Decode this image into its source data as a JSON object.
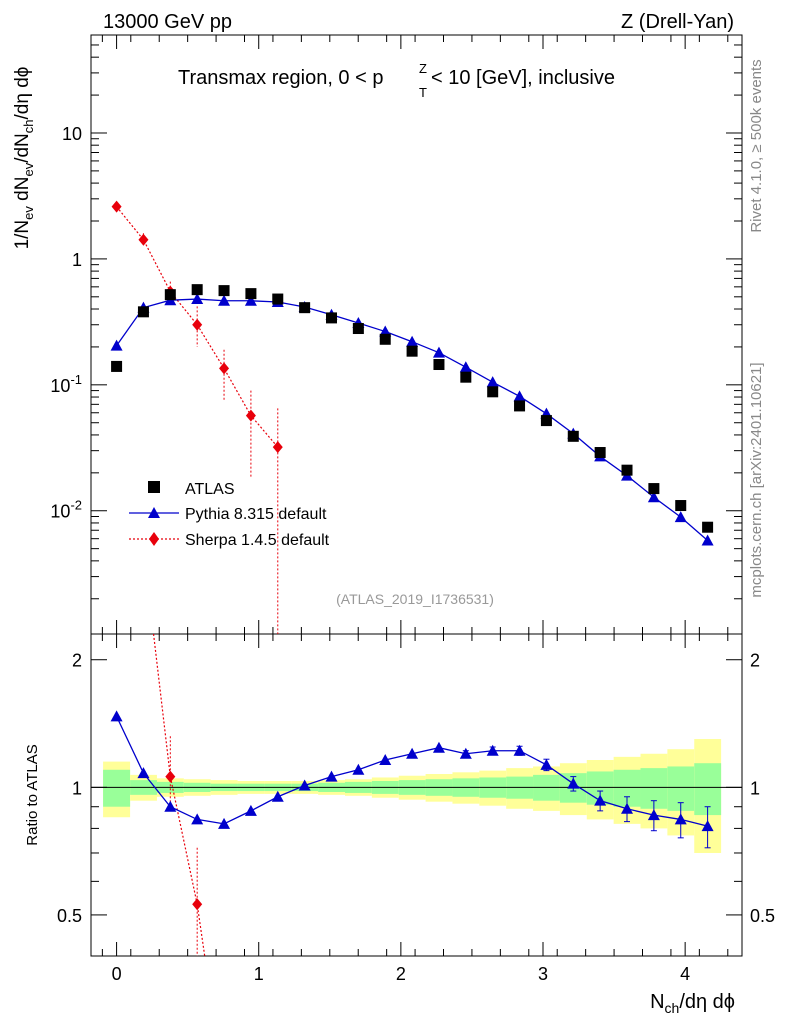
{
  "header": {
    "energy_label": "13000 GeV pp",
    "process_label": "Z (Drell-Yan)",
    "plot_title": "Transmax region, 0 < p",
    "plot_title_sup": "Z",
    "plot_title_sub": "T",
    "plot_title_tail": " < 10 [GeV], inclusive",
    "analysis_id": "(ATLAS_2019_I1736531)"
  },
  "side_labels": {
    "rivet": "Rivet 4.1.0, ≥ 500k events",
    "mcplots": "mcplots.cern.ch [arXiv:2401.10621]"
  },
  "axes": {
    "y_main_label": "1/N_ev dN_ev/dN_ch/dη dϕ",
    "y_ratio_label": "Ratio to ATLAS",
    "x_label": "N_ch/dη dϕ",
    "x_ticks": [
      "0",
      "1",
      "2",
      "3",
      "4"
    ],
    "y_main_ticks": [
      "10",
      "1",
      "10^-1",
      "10^-2"
    ],
    "y_ratio_ticks": [
      "2",
      "1",
      "0.5"
    ]
  },
  "legend": {
    "atlas": "ATLAS",
    "pythia": "Pythia 8.315 default",
    "sherpa": "Sherpa 1.4.5 default"
  },
  "colors": {
    "atlas": "#000000",
    "pythia": "#0000cc",
    "sherpa": "#e8000b",
    "band_inner": "#99ff99",
    "band_outer": "#ffff99"
  },
  "chart_data": [
    {
      "type": "scatter",
      "title": "Transmax region, 0 < pT^Z < 10 [GeV], inclusive",
      "xlabel": "N_ch/dη dϕ",
      "ylabel": "1/N_ev dN_ev/dN_ch/dη dϕ",
      "yscale": "log",
      "xlim": [
        -0.18,
        4.4
      ],
      "ylim": [
        0.00105,
        60
      ],
      "legend": "top-left",
      "series": [
        {
          "name": "ATLAS",
          "marker": "square",
          "x": [
            0,
            0.189,
            0.378,
            0.567,
            0.756,
            0.945,
            1.134,
            1.323,
            1.512,
            1.701,
            1.89,
            2.079,
            2.268,
            2.457,
            2.646,
            2.835,
            3.024,
            3.213,
            3.402,
            3.591,
            3.78,
            3.969,
            4.158
          ],
          "y": [
            0.14,
            0.38,
            0.52,
            0.57,
            0.56,
            0.53,
            0.48,
            0.41,
            0.34,
            0.28,
            0.23,
            0.185,
            0.145,
            0.115,
            0.088,
            0.068,
            0.052,
            0.039,
            0.029,
            0.021,
            0.015,
            0.011,
            0.0074
          ]
        },
        {
          "name": "Pythia 8.315 default",
          "marker": "triangle",
          "x": [
            0,
            0.189,
            0.378,
            0.567,
            0.756,
            0.945,
            1.134,
            1.323,
            1.512,
            1.701,
            1.89,
            2.079,
            2.268,
            2.457,
            2.646,
            2.835,
            3.024,
            3.213,
            3.402,
            3.591,
            3.78,
            3.969,
            4.158
          ],
          "y": [
            0.205,
            0.41,
            0.47,
            0.48,
            0.465,
            0.465,
            0.455,
            0.415,
            0.36,
            0.31,
            0.265,
            0.22,
            0.18,
            0.138,
            0.105,
            0.081,
            0.059,
            0.041,
            0.027,
            0.019,
            0.0128,
            0.0089,
            0.0058
          ]
        },
        {
          "name": "Sherpa 1.4.5 default",
          "marker": "diamond",
          "x": [
            0,
            0.189,
            0.378,
            0.567,
            0.756,
            0.945,
            1.134
          ],
          "y": [
            2.6,
            1.42,
            0.55,
            0.3,
            0.135,
            0.057,
            0.032
          ]
        }
      ]
    },
    {
      "type": "line",
      "ylabel": "Ratio to ATLAS",
      "xlabel": "N_ch/dη dϕ",
      "xlim": [
        -0.18,
        4.4
      ],
      "ylim": [
        0.4,
        2.3
      ],
      "series": [
        {
          "name": "Pythia 8.315 default / ATLAS",
          "x": [
            0,
            0.189,
            0.378,
            0.567,
            0.756,
            0.945,
            1.134,
            1.323,
            1.512,
            1.701,
            1.89,
            2.079,
            2.268,
            2.457,
            2.646,
            2.835,
            3.024,
            3.213,
            3.402,
            3.591,
            3.78,
            3.969,
            4.158
          ],
          "y": [
            1.47,
            1.08,
            0.9,
            0.84,
            0.82,
            0.88,
            0.95,
            1.01,
            1.06,
            1.1,
            1.16,
            1.2,
            1.24,
            1.2,
            1.22,
            1.22,
            1.13,
            1.02,
            0.93,
            0.89,
            0.86,
            0.84,
            0.81
          ]
        },
        {
          "name": "Sherpa 1.4.5 default / ATLAS",
          "x": [
            0.26,
            0.378,
            0.567,
            0.62
          ],
          "y": [
            2.3,
            1.06,
            0.53,
            0.4
          ]
        }
      ],
      "bands": {
        "x_edges": [
          -0.095,
          0.095,
          0.284,
          0.473,
          0.662,
          0.851,
          1.04,
          1.229,
          1.418,
          1.607,
          1.796,
          1.985,
          2.174,
          2.363,
          2.552,
          2.741,
          2.93,
          3.119,
          3.308,
          3.497,
          3.686,
          3.875,
          4.064,
          4.253
        ],
        "inner_halfwidth": [
          0.1,
          0.04,
          0.03,
          0.025,
          0.02,
          0.02,
          0.02,
          0.02,
          0.025,
          0.03,
          0.035,
          0.04,
          0.045,
          0.05,
          0.055,
          0.06,
          0.07,
          0.08,
          0.09,
          0.1,
          0.11,
          0.12,
          0.14
        ],
        "outer_halfwidth": [
          0.15,
          0.07,
          0.05,
          0.045,
          0.04,
          0.035,
          0.035,
          0.035,
          0.04,
          0.045,
          0.055,
          0.065,
          0.075,
          0.085,
          0.095,
          0.11,
          0.12,
          0.14,
          0.16,
          0.18,
          0.2,
          0.23,
          0.3
        ]
      }
    }
  ]
}
